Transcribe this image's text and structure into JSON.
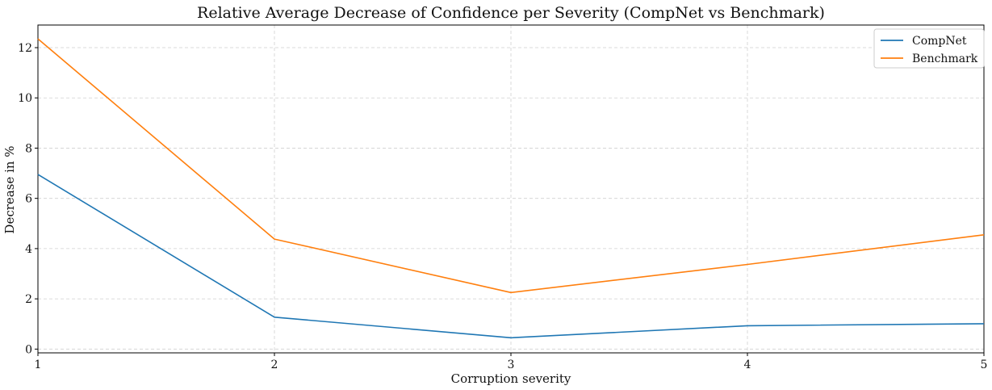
{
  "chart_data": {
    "type": "line",
    "title": "Relative Average Decrease of Confidence per Severity (CompNet vs Benchmark)",
    "xlabel": "Corruption severity",
    "ylabel": "Decrease in %",
    "x": [
      1,
      2,
      3,
      4,
      5
    ],
    "xticks": [
      "1",
      "2",
      "3",
      "4",
      "5"
    ],
    "yticks": [
      "0",
      "2",
      "4",
      "6",
      "8",
      "10",
      "12"
    ],
    "xlim": [
      1,
      5
    ],
    "ylim": [
      -0.15,
      12.9
    ],
    "grid": true,
    "legend_position": "top-right",
    "series": [
      {
        "name": "CompNet",
        "color": "#1f77b4",
        "values": [
          6.95,
          1.27,
          0.45,
          0.93,
          1.01
        ]
      },
      {
        "name": "Benchmark",
        "color": "#ff7f0e",
        "values": [
          12.35,
          4.38,
          2.25,
          3.37,
          4.55
        ]
      }
    ]
  }
}
